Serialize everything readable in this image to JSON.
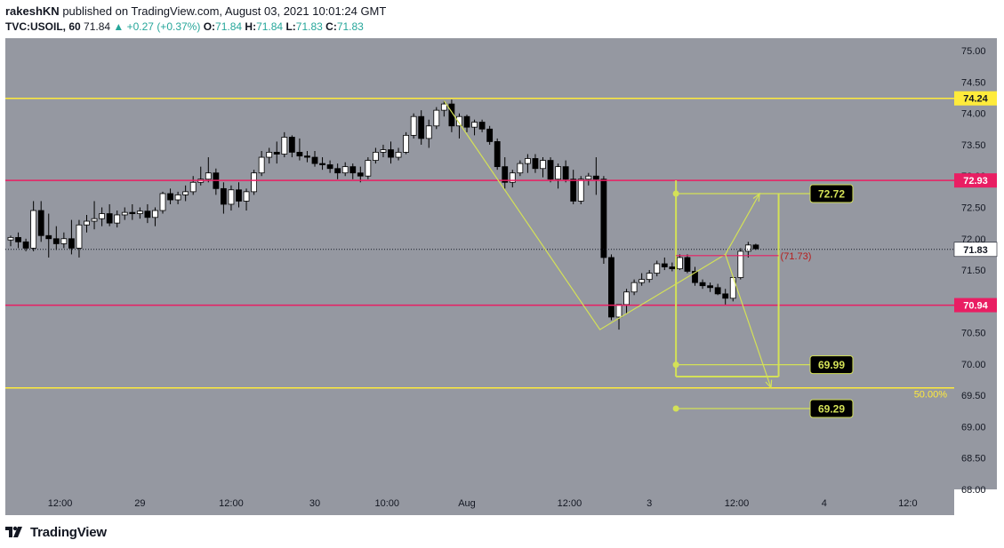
{
  "header": {
    "user": "rakeshKN",
    "published_text": "published on TradingView.com, August 03, 2021 10:01:24 GMT",
    "symbol": "TVC:USOIL, 60",
    "last": "71.84",
    "change": "▲ +0.27 (+0.37%)",
    "o_label": "O:",
    "o_value": "71.84",
    "h_label": "H:",
    "h_value": "71.84",
    "l_label": "L:",
    "l_value": "71.83",
    "c_label": "C:",
    "c_value": "71.83"
  },
  "footer": {
    "brand": "TradingView",
    "logo_icon": "tradingview-logo-icon"
  },
  "colors": {
    "chart_bg": "#9598a1",
    "yellow_line": "#ffeb3b",
    "red_line": "#e91e63",
    "pattern": "#d4e157",
    "label_box_text": "#d4e157",
    "candle_up": "#ffffff",
    "candle_down": "#000000"
  },
  "chart_data": {
    "type": "candlestick",
    "ylim": [
      68.0,
      75.2
    ],
    "yticks": [
      "68.00",
      "68.50",
      "69.00",
      "69.50",
      "70.00",
      "70.50",
      "71.00",
      "71.50",
      "72.00",
      "72.50",
      "73.00",
      "73.50",
      "74.00",
      "74.50",
      "75.00"
    ],
    "x_ticks": [
      {
        "i": 6.5,
        "label": "12:00"
      },
      {
        "i": 17,
        "label": "29"
      },
      {
        "i": 29,
        "label": "12:00"
      },
      {
        "i": 40,
        "label": "30"
      },
      {
        "i": 49.5,
        "label": "10:00"
      },
      {
        "i": 60,
        "label": "Aug"
      },
      {
        "i": 73.5,
        "label": "12:00"
      },
      {
        "i": 84,
        "label": "3"
      },
      {
        "i": 95.5,
        "label": "12:00"
      },
      {
        "i": 107,
        "label": "4"
      },
      {
        "i": 118,
        "label": "12:0"
      }
    ],
    "candles": [
      [
        71.98,
        72.05,
        71.88,
        72.02
      ],
      [
        72.02,
        72.1,
        71.85,
        71.95
      ],
      [
        71.95,
        72.0,
        71.8,
        71.85
      ],
      [
        71.85,
        72.6,
        71.8,
        72.45
      ],
      [
        72.45,
        72.6,
        71.95,
        72.05
      ],
      [
        72.05,
        72.4,
        71.7,
        72.0
      ],
      [
        72.0,
        72.2,
        71.82,
        71.92
      ],
      [
        71.92,
        72.1,
        71.85,
        72.0
      ],
      [
        72.0,
        72.3,
        71.75,
        71.85
      ],
      [
        71.85,
        72.3,
        71.7,
        72.22
      ],
      [
        72.22,
        72.38,
        72.1,
        72.28
      ],
      [
        72.28,
        72.6,
        72.15,
        72.32
      ],
      [
        72.32,
        72.5,
        72.2,
        72.4
      ],
      [
        72.4,
        72.55,
        72.2,
        72.25
      ],
      [
        72.25,
        72.45,
        72.18,
        72.38
      ],
      [
        72.38,
        72.5,
        72.3,
        72.42
      ],
      [
        72.42,
        72.55,
        72.3,
        72.4
      ],
      [
        72.4,
        72.5,
        72.32,
        72.44
      ],
      [
        72.44,
        72.55,
        72.25,
        72.34
      ],
      [
        72.34,
        72.5,
        72.2,
        72.45
      ],
      [
        72.45,
        72.75,
        72.4,
        72.72
      ],
      [
        72.72,
        72.8,
        72.55,
        72.62
      ],
      [
        72.62,
        72.75,
        72.55,
        72.7
      ],
      [
        72.7,
        72.85,
        72.6,
        72.75
      ],
      [
        72.75,
        73.0,
        72.7,
        72.9
      ],
      [
        72.9,
        73.15,
        72.85,
        72.95
      ],
      [
        72.95,
        73.3,
        72.9,
        73.05
      ],
      [
        73.05,
        73.12,
        72.7,
        72.8
      ],
      [
        72.8,
        72.9,
        72.4,
        72.55
      ],
      [
        72.55,
        72.85,
        72.45,
        72.78
      ],
      [
        72.78,
        72.9,
        72.5,
        72.6
      ],
      [
        72.6,
        72.8,
        72.45,
        72.75
      ],
      [
        72.75,
        73.1,
        72.7,
        73.05
      ],
      [
        73.05,
        73.4,
        73.0,
        73.3
      ],
      [
        73.3,
        73.45,
        73.2,
        73.38
      ],
      [
        73.38,
        73.55,
        73.2,
        73.35
      ],
      [
        73.35,
        73.7,
        73.3,
        73.62
      ],
      [
        73.62,
        73.65,
        73.3,
        73.38
      ],
      [
        73.38,
        73.6,
        73.25,
        73.32
      ],
      [
        73.32,
        73.4,
        73.22,
        73.3
      ],
      [
        73.3,
        73.4,
        73.15,
        73.2
      ],
      [
        73.2,
        73.3,
        73.1,
        73.18
      ],
      [
        73.18,
        73.25,
        73.05,
        73.12
      ],
      [
        73.12,
        73.2,
        72.95,
        73.05
      ],
      [
        73.05,
        73.22,
        73.0,
        73.15
      ],
      [
        73.15,
        73.2,
        72.95,
        73.05
      ],
      [
        73.05,
        73.15,
        72.9,
        73.0
      ],
      [
        73.0,
        73.3,
        72.95,
        73.25
      ],
      [
        73.25,
        73.45,
        73.2,
        73.38
      ],
      [
        73.38,
        73.5,
        73.3,
        73.42
      ],
      [
        73.42,
        73.55,
        73.2,
        73.3
      ],
      [
        73.3,
        73.45,
        73.25,
        73.38
      ],
      [
        73.38,
        73.7,
        73.35,
        73.65
      ],
      [
        73.65,
        74.0,
        73.6,
        73.95
      ],
      [
        73.95,
        74.05,
        73.5,
        73.6
      ],
      [
        73.6,
        73.9,
        73.45,
        73.8
      ],
      [
        73.8,
        74.1,
        73.75,
        74.05
      ],
      [
        74.05,
        74.2,
        73.95,
        74.15
      ],
      [
        74.15,
        74.22,
        73.7,
        73.8
      ],
      [
        73.8,
        74.0,
        73.6,
        73.95
      ],
      [
        73.95,
        73.98,
        73.7,
        73.78
      ],
      [
        73.78,
        73.9,
        73.65,
        73.86
      ],
      [
        73.86,
        73.9,
        73.7,
        73.75
      ],
      [
        73.75,
        73.8,
        73.5,
        73.55
      ],
      [
        73.55,
        73.6,
        73.1,
        73.15
      ],
      [
        73.15,
        73.3,
        72.8,
        72.9
      ],
      [
        72.9,
        73.1,
        72.82,
        73.05
      ],
      [
        73.05,
        73.25,
        73.0,
        73.2
      ],
      [
        73.2,
        73.35,
        73.05,
        73.28
      ],
      [
        73.28,
        73.35,
        73.05,
        73.12
      ],
      [
        73.12,
        73.3,
        72.98,
        73.25
      ],
      [
        73.25,
        73.3,
        72.9,
        72.95
      ],
      [
        72.95,
        73.2,
        72.8,
        73.15
      ],
      [
        73.15,
        73.25,
        72.9,
        72.95
      ],
      [
        72.95,
        73.1,
        72.55,
        72.6
      ],
      [
        72.6,
        73.0,
        72.55,
        72.95
      ],
      [
        72.95,
        73.05,
        72.85,
        73.0
      ],
      [
        73.0,
        73.3,
        72.7,
        72.95
      ],
      [
        72.95,
        73.0,
        71.6,
        71.7
      ],
      [
        71.7,
        71.75,
        70.7,
        70.75
      ],
      [
        70.75,
        70.9,
        70.55,
        70.95
      ],
      [
        70.95,
        71.2,
        70.8,
        71.15
      ],
      [
        71.15,
        71.35,
        71.1,
        71.3
      ],
      [
        71.3,
        71.45,
        71.25,
        71.35
      ],
      [
        71.35,
        71.5,
        71.3,
        71.45
      ],
      [
        71.45,
        71.65,
        71.4,
        71.6
      ],
      [
        71.6,
        71.7,
        71.5,
        71.55
      ],
      [
        71.55,
        71.62,
        71.48,
        71.52
      ],
      [
        71.52,
        71.75,
        71.5,
        71.7
      ],
      [
        71.7,
        71.75,
        71.45,
        71.48
      ],
      [
        71.48,
        71.55,
        71.25,
        71.3
      ],
      [
        71.3,
        71.35,
        71.2,
        71.25
      ],
      [
        71.25,
        71.3,
        71.15,
        71.22
      ],
      [
        71.22,
        71.28,
        71.1,
        71.12
      ],
      [
        71.12,
        71.2,
        70.95,
        71.05
      ],
      [
        71.05,
        71.4,
        71.0,
        71.38
      ],
      [
        71.38,
        71.85,
        71.35,
        71.8
      ],
      [
        71.8,
        71.95,
        71.7,
        71.9
      ],
      [
        71.9,
        71.92,
        71.82,
        71.84
      ]
    ],
    "hlines": [
      {
        "price": 74.24,
        "color": "#ffeb3b",
        "label": "74.24"
      },
      {
        "price": 72.93,
        "color": "#e91e63",
        "label": "72.93"
      },
      {
        "price": 70.94,
        "color": "#e91e63",
        "label": "70.94"
      },
      {
        "price": 69.62,
        "color": "#ffeb3b",
        "label": "50.00%"
      }
    ],
    "last_price": {
      "price": 71.83,
      "label": "71.83"
    },
    "pattern_points": [
      {
        "i": 57,
        "price": 74.2
      },
      {
        "i": 77.5,
        "price": 70.55
      },
      {
        "i": 94,
        "price": 71.75
      }
    ],
    "projection": {
      "start": {
        "i": 94,
        "price": 71.75
      },
      "up_target": {
        "i": 98.5,
        "price": 72.72
      },
      "down_target": {
        "i": 100,
        "price": 69.62
      }
    },
    "range_box": {
      "i0": 87.5,
      "i1": 101,
      "top": 72.93,
      "bottom": 69.8
    },
    "mid_marker": {
      "i0": 87.5,
      "i1": 101,
      "price": 71.73,
      "label": "(71.73)"
    },
    "target_labels": [
      {
        "price": 72.72,
        "label": "72.72",
        "from_i": 87.5
      },
      {
        "price": 69.99,
        "label": "69.99",
        "from_i": 87.5
      },
      {
        "price": 69.29,
        "label": "69.29",
        "from_i": 87.5
      }
    ]
  }
}
